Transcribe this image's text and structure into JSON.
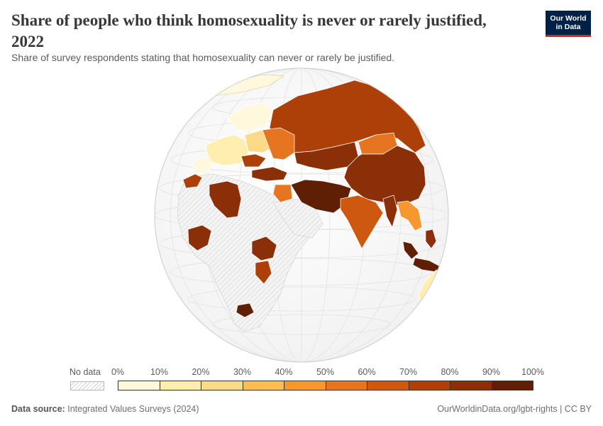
{
  "header": {
    "title": "Share of people who think homosexuality is never or rarely justified, 2022",
    "subtitle": "Share of survey respondents stating that homosexuality can never or rarely be justified."
  },
  "logo": {
    "line1": "Our World",
    "line2": "in Data"
  },
  "colors": {
    "logo_bg": "#002147",
    "logo_accent": "#ce261e",
    "ocean": "#ffffff",
    "no_data_fill": "#eeeeee",
    "border": "#ffffff"
  },
  "legend": {
    "no_data_label": "No data",
    "ticks": [
      "0%",
      "10%",
      "20%",
      "30%",
      "40%",
      "50%",
      "60%",
      "70%",
      "80%",
      "90%",
      "100%"
    ],
    "bin_colors": [
      "#fff8dd",
      "#ffeeb0",
      "#fdd98a",
      "#fbbd54",
      "#f5982f",
      "#e67521",
      "#cf5811",
      "#ad4009",
      "#8a2f07",
      "#5f1f05"
    ]
  },
  "chart_data": {
    "type": "choropleth",
    "projection": "orthographic",
    "unit": "%",
    "scale": [
      0,
      100
    ],
    "regions_estimated_bins": [
      {
        "region": "Nordic countries",
        "bin": "0-10%"
      },
      {
        "region": "Western Europe",
        "bin": "10-30%"
      },
      {
        "region": "Spain",
        "bin": "0-10%"
      },
      {
        "region": "Morocco",
        "bin": "70-80%"
      },
      {
        "region": "Libya",
        "bin": "80-90%"
      },
      {
        "region": "Eastern Europe",
        "bin": "50-80%"
      },
      {
        "region": "Turkey",
        "bin": "80-90%"
      },
      {
        "region": "Russia",
        "bin": "70-80%"
      },
      {
        "region": "Kazakhstan",
        "bin": "80-90%"
      },
      {
        "region": "Mongolia",
        "bin": "50-60%"
      },
      {
        "region": "China",
        "bin": "80-90%"
      },
      {
        "region": "Iran",
        "bin": "90-100%"
      },
      {
        "region": "Iraq",
        "bin": "60-70%"
      },
      {
        "region": "Pakistan",
        "bin": "90-100%"
      },
      {
        "region": "India",
        "bin": "60-70%"
      },
      {
        "region": "Myanmar",
        "bin": "80-90%"
      },
      {
        "region": "Thailand",
        "bin": "40-50%"
      },
      {
        "region": "Vietnam",
        "bin": "40-50%"
      },
      {
        "region": "Malaysia",
        "bin": "90-100%"
      },
      {
        "region": "Indonesia",
        "bin": "90-100%"
      },
      {
        "region": "Philippines",
        "bin": "80-90%"
      },
      {
        "region": "Nigeria",
        "bin": "80-90%"
      },
      {
        "region": "Ethiopia",
        "bin": "80-90%"
      },
      {
        "region": "Kenya",
        "bin": "70-80%"
      },
      {
        "region": "Zimbabwe",
        "bin": "90-100%"
      },
      {
        "region": "Australia",
        "bin": "10-20%"
      }
    ]
  },
  "footer": {
    "source_label": "Data source:",
    "source_text": "Integrated Values Surveys (2024)",
    "link": "OurWorldinData.org/lgbt-rights | CC BY"
  }
}
